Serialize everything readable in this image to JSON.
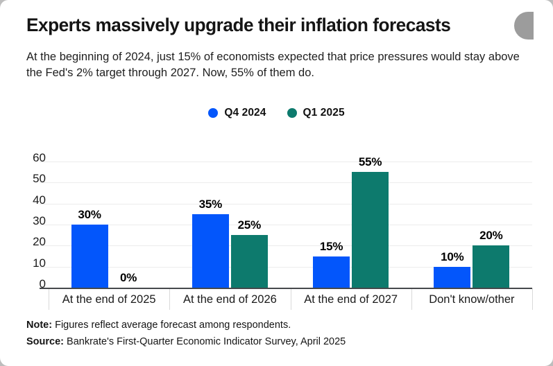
{
  "header": {
    "title": "Experts massively upgrade their inflation forecasts",
    "subtitle": "At the beginning of 2024, just 15% of economists expected that price pressures would stay above the Fed's 2% target through 2027. Now, 55% of them do."
  },
  "legend": {
    "items": [
      {
        "label": "Q4 2024",
        "color": "#0356fb"
      },
      {
        "label": "Q1 2025",
        "color": "#0d7a6d"
      }
    ]
  },
  "chart_data": {
    "type": "bar",
    "title": "Experts massively upgrade their inflation forecasts",
    "categories": [
      "At the end of 2025",
      "At the end of 2026",
      "At the end of 2027",
      "Don't know/other"
    ],
    "series": [
      {
        "name": "Q4 2024",
        "color": "#0356fb",
        "values": [
          30,
          35,
          15,
          10
        ],
        "labels": [
          "30%",
          "35%",
          "15%",
          "10%"
        ]
      },
      {
        "name": "Q1 2025",
        "color": "#0d7a6d",
        "values": [
          0,
          25,
          55,
          20
        ],
        "labels": [
          "0%",
          "25%",
          "55%",
          "20%"
        ]
      }
    ],
    "yticks": [
      0,
      10,
      20,
      30,
      40,
      50,
      60
    ],
    "ylim": [
      0,
      60
    ],
    "value_suffix": "%",
    "grid": true,
    "legend_position": "top"
  },
  "footnotes": {
    "note_label": "Note:",
    "note_text": " Figures reflect average forecast among respondents.",
    "source_label": "Source:",
    "source_text": " Bankrate's First-Quarter Economic Indicator Survey, April 2025"
  },
  "colors": {
    "background": "#ffffff",
    "gridline": "#ececec",
    "axis_line": "#45484b",
    "category_divider": "#d9d9d9",
    "decoration": "#9c9c9c",
    "text": "#151515"
  }
}
